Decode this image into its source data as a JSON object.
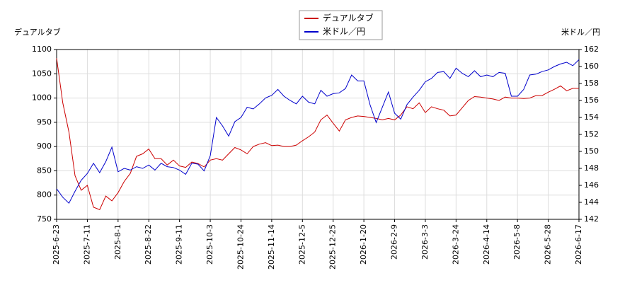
{
  "chart_data": {
    "type": "line",
    "y_label": "デュアルタブ",
    "y2_label": "米ドル／円",
    "categories": [
      "2025-6-23",
      null,
      null,
      null,
      null,
      "2025-7-11",
      null,
      null,
      null,
      null,
      "2025-8-1",
      null,
      null,
      null,
      null,
      "2025-8-22",
      null,
      null,
      null,
      null,
      "2025-9-11",
      null,
      null,
      null,
      null,
      "2025-10-3",
      null,
      null,
      null,
      null,
      "2025-10-24",
      null,
      null,
      null,
      null,
      "2025-11-14",
      null,
      null,
      null,
      null,
      "2025-12-5",
      null,
      null,
      null,
      null,
      "2025-12-25",
      null,
      null,
      null,
      null,
      "2026-1-20",
      null,
      null,
      null,
      null,
      "2026-2-9",
      null,
      null,
      null,
      null,
      "2026-3-3",
      null,
      null,
      null,
      null,
      "2026-3-24",
      null,
      null,
      null,
      null,
      "2026-4-14",
      null,
      null,
      null,
      null,
      "2026-5-8",
      null,
      null,
      null,
      null,
      "2026-5-28",
      null,
      null,
      null,
      null,
      "2026-6-17"
    ],
    "series": [
      {
        "name": "デュアルタブ",
        "color": "#cc0000",
        "axis": "y",
        "values": [
          1082,
          990,
          930,
          840,
          810,
          820,
          775,
          770,
          798,
          788,
          805,
          828,
          845,
          880,
          885,
          895,
          875,
          875,
          862,
          872,
          860,
          857,
          868,
          865,
          858,
          872,
          875,
          872,
          885,
          898,
          893,
          885,
          900,
          905,
          908,
          902,
          903,
          900,
          900,
          903,
          912,
          920,
          930,
          955,
          965,
          948,
          932,
          955,
          960,
          963,
          962,
          960,
          958,
          955,
          958,
          955,
          965,
          982,
          978,
          990,
          970,
          982,
          978,
          975,
          963,
          965,
          980,
          995,
          1003,
          1002,
          1000,
          998,
          995,
          1002,
          1000,
          1000,
          999,
          1000,
          1005,
          1005,
          1012,
          1018,
          1025,
          1015,
          1020,
          1020
        ]
      },
      {
        "name": "米ドル／円",
        "color": "#0000cc",
        "axis": "y2",
        "values": [
          145.6,
          144.6,
          143.9,
          145.3,
          146.6,
          147.4,
          148.6,
          147.5,
          148.8,
          150.5,
          147.6,
          148,
          147.8,
          148.2,
          148,
          148.4,
          147.8,
          148.6,
          148.2,
          148.1,
          147.8,
          147.3,
          148.6,
          148.5,
          147.7,
          149.5,
          154,
          153,
          151.8,
          153.5,
          154,
          155.2,
          155,
          155.6,
          156.3,
          156.6,
          157.3,
          156.5,
          156,
          155.6,
          156.5,
          155.8,
          155.6,
          157.2,
          156.5,
          156.8,
          156.9,
          157.4,
          159,
          158.3,
          158.3,
          155.5,
          153.4,
          155.2,
          157,
          154.5,
          153.8,
          155.5,
          156.4,
          157.2,
          158.2,
          158.6,
          159.3,
          159.4,
          158.6,
          159.8,
          159.2,
          158.8,
          159.5,
          158.8,
          159,
          158.8,
          159.3,
          159.2,
          156.5,
          156.5,
          157.3,
          159,
          159.1,
          159.4,
          159.6,
          160,
          160.3,
          160.5,
          160.1,
          160.8
        ]
      }
    ],
    "ylim": [
      750,
      1100
    ],
    "yticks": [
      750,
      800,
      850,
      900,
      950,
      1000,
      1050,
      1100
    ],
    "y2lim": [
      142,
      162
    ],
    "y2ticks": [
      142,
      144,
      146,
      148,
      150,
      152,
      154,
      156,
      158,
      160,
      162
    ],
    "grid": true
  }
}
